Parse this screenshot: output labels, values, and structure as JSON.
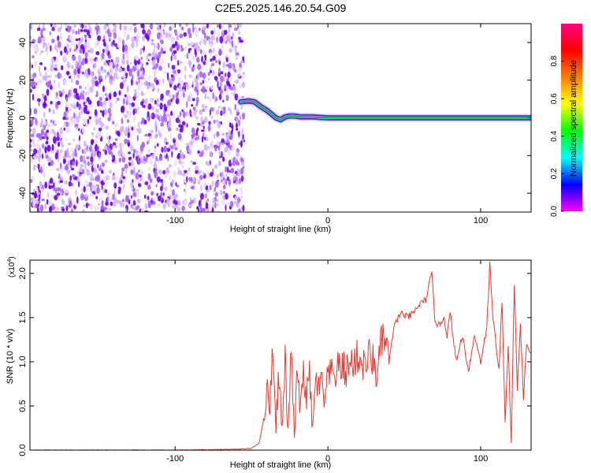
{
  "title": "C2E5.2025.146.20.54.G09",
  "chart_data": [
    {
      "type": "heatmap",
      "xlabel": "Height of straight line (km)",
      "ylabel": "Frequency (Hz)",
      "xlim": [
        -195,
        133
      ],
      "ylim": [
        -50,
        50
      ],
      "x_ticks": [
        -100,
        0,
        100
      ],
      "y_ticks": [
        -40,
        -20,
        0,
        20,
        40
      ],
      "noise_region_x": [
        -195,
        -55
      ],
      "signal_track": {
        "x": [
          -57,
          -52,
          -48,
          -44,
          -40,
          -37,
          -34,
          -31,
          -28,
          -25,
          -22,
          -18,
          -14,
          -10,
          -5,
          0,
          5,
          10,
          20,
          40,
          60,
          80,
          100,
          120,
          133
        ],
        "freq": [
          8.5,
          9,
          8.5,
          6,
          4,
          2,
          0,
          -1,
          0.5,
          1,
          1,
          0.5,
          0.5,
          0.5,
          0.2,
          0,
          0,
          0,
          0,
          0,
          0,
          0,
          0,
          0,
          0
        ]
      },
      "colorbar": {
        "label": "Normalized spectral amplitude",
        "range": [
          0,
          1
        ],
        "ticks": [
          "0.0",
          "0.2",
          "0.4",
          "0.6",
          "0.8"
        ],
        "colors": [
          "#ff00ff",
          "#0000ff",
          "#00ffff",
          "#00ff00",
          "#ffff00",
          "#ff8000",
          "#ff0000",
          "#ff0080"
        ]
      }
    },
    {
      "type": "line",
      "xlabel": "Height of straight line (km)",
      "ylabel": "SNR (10 * v/v)",
      "y_multiplier": "(x10",
      "y_multiplier_exp": "4",
      "y_multiplier_close": ")",
      "xlim": [
        -195,
        133
      ],
      "ylim": [
        0,
        2.15
      ],
      "x_ticks": [
        -100,
        0,
        100
      ],
      "y_ticks": [
        "0.0",
        "0.5",
        "1.0",
        "1.5",
        "2.0"
      ],
      "line_color": "#e8392f",
      "series": [
        {
          "x": [
            -195,
            -150,
            -100,
            -60,
            -50,
            -45,
            -42,
            -40,
            -38,
            -36,
            -34,
            -32,
            -30,
            -28,
            -26,
            -24,
            -22,
            -20,
            -18,
            -16,
            -14,
            -12,
            -10,
            -8,
            -6,
            -4,
            -2,
            0,
            4,
            8,
            12,
            16,
            20,
            24,
            28,
            32,
            36,
            40,
            44,
            48,
            52,
            56,
            60,
            64,
            68,
            70,
            72,
            76,
            78,
            80,
            84,
            88,
            92,
            96,
            100,
            104,
            106,
            108,
            112,
            114,
            116,
            118,
            120,
            122,
            124,
            126,
            128,
            130,
            133
          ],
          "y": [
            0.0,
            0.0,
            0.0,
            0.01,
            0.02,
            0.08,
            0.35,
            0.7,
            0.5,
            1.2,
            0.3,
            0.9,
            0.2,
            1.0,
            0.15,
            1.2,
            0.1,
            0.95,
            0.4,
            0.9,
            0.6,
            0.85,
            0.2,
            0.8,
            0.7,
            0.75,
            0.5,
            0.85,
            0.85,
            0.95,
            0.9,
            1.0,
            1.05,
            0.95,
            1.1,
            0.85,
            1.3,
            1.0,
            1.45,
            1.55,
            1.5,
            1.55,
            1.65,
            1.7,
            2.0,
            1.5,
            1.4,
            1.5,
            1.3,
            1.55,
            1.0,
            1.3,
            0.9,
            1.3,
            1.0,
            1.4,
            2.1,
            1.5,
            0.9,
            1.7,
            0.3,
            1.2,
            0.05,
            1.9,
            0.7,
            1.4,
            0.6,
            1.2,
            1.1
          ]
        }
      ]
    }
  ]
}
